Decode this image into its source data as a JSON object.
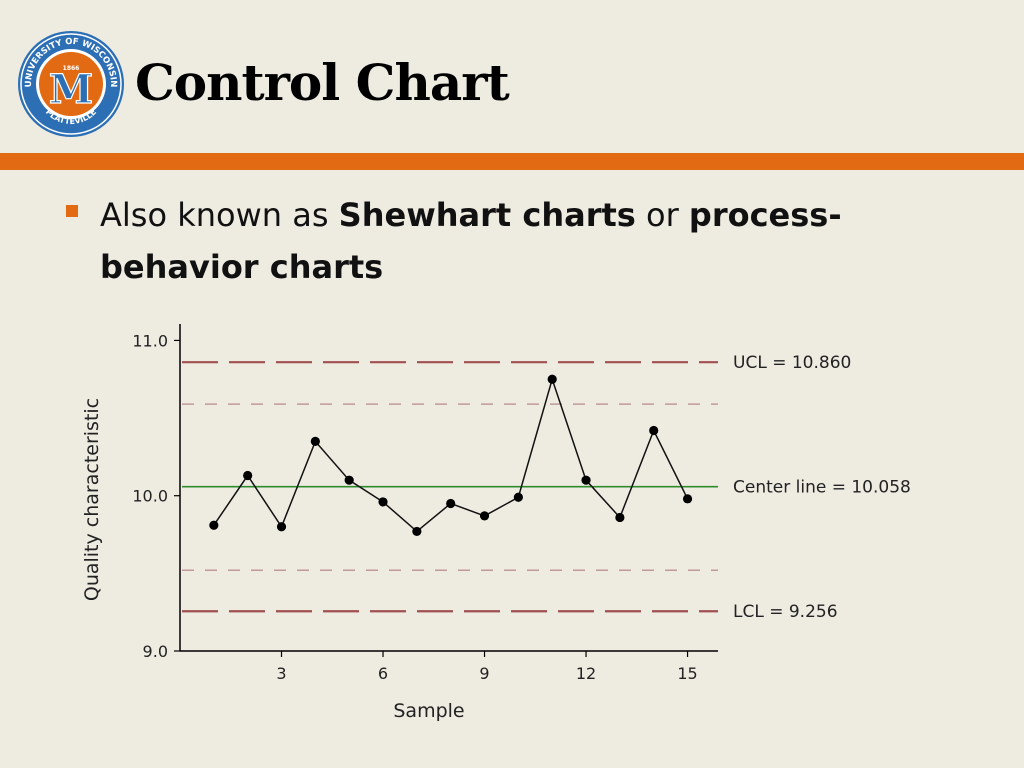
{
  "slide": {
    "title": "Control Chart",
    "logo": {
      "text_top": "UNIVERSITY OF WISCONSIN",
      "text_bottom": "PLATTEVILLE",
      "year": "1866",
      "letter": "M"
    }
  },
  "bullet": {
    "parts": [
      "Also known as ",
      "Shewhart charts",
      " or ",
      "process-behavior charts"
    ]
  },
  "colors": {
    "accent": "#e26a12",
    "background": "#eeebe1",
    "limit_line": "#a05050",
    "sigma_line": "#c09a9a",
    "center_line": "#2e8b2e",
    "logo_blue": "#2c6fb5",
    "logo_orange": "#e26a12"
  },
  "chart_data": {
    "type": "line",
    "xlabel": "Sample",
    "ylabel": "Quality characteristic",
    "x": [
      1,
      2,
      3,
      4,
      5,
      6,
      7,
      8,
      9,
      10,
      11,
      12,
      13,
      14,
      15
    ],
    "values": [
      9.81,
      10.13,
      9.8,
      10.35,
      10.1,
      9.96,
      9.77,
      9.95,
      9.87,
      9.99,
      10.75,
      10.1,
      9.86,
      10.42,
      9.98
    ],
    "xlim": [
      0,
      15.9
    ],
    "ylim": [
      9.0,
      11.08
    ],
    "xticks": [
      3,
      6,
      9,
      12,
      15
    ],
    "yticks": [
      9.0,
      10.0,
      11.0
    ],
    "ytick_labels": [
      "9.0",
      "10.0",
      "11.0"
    ],
    "ucl": 10.86,
    "lcl": 9.256,
    "center": 10.058,
    "upper_warning": 10.59,
    "lower_warning": 9.52,
    "annotations": [
      "UCL = 10.860",
      "Center line = 10.058",
      "LCL = 9.256"
    ]
  }
}
